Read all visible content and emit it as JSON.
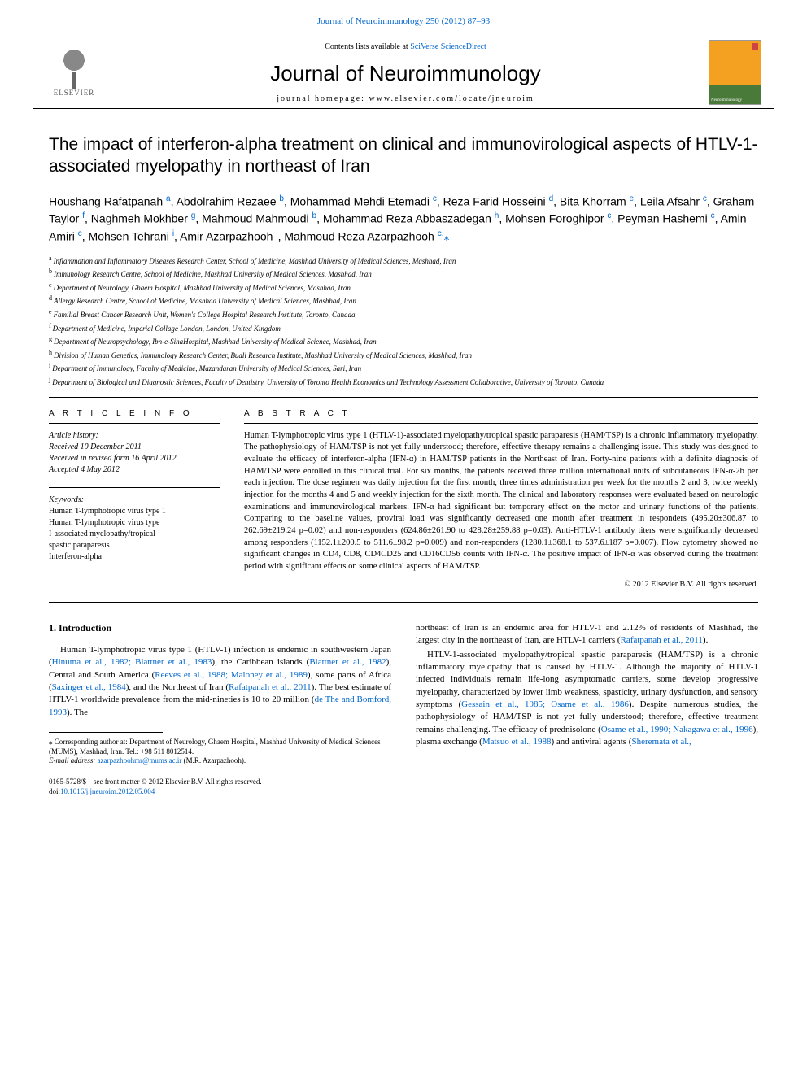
{
  "header": {
    "top_link": "Journal of Neuroimmunology 250 (2012) 87–93",
    "contents_at": "Contents lists available at ",
    "sd_name": "SciVerse ScienceDirect",
    "journal_title": "Journal of Neuroimmunology",
    "homepage_label": "journal homepage: ",
    "homepage_url": "www.elsevier.com/locate/jneuroim",
    "elsevier_label": "ELSEVIER",
    "cover_label": "Neuroimmunology"
  },
  "article": {
    "title": "The impact of interferon-alpha treatment on clinical and immunovirological aspects of HTLV-1-associated myelopathy in northeast of Iran",
    "authors_html": "Houshang Rafatpanah <sup>a</sup>, Abdolrahim Rezaee <sup>b</sup>, Mohammad Mehdi Etemadi <sup>c</sup>, Reza Farid Hosseini <sup>d</sup>, Bita Khorram <sup>e</sup>, Leila Afsahr <sup>c</sup>, Graham Taylor <sup>f</sup>, Naghmeh Mokhber <sup>g</sup>, Mahmoud Mahmoudi <sup>b</sup>, Mohammad Reza Abbaszadegan <sup>h</sup>, Mohsen Foroghipor <sup>c</sup>, Peyman Hashemi <sup>c</sup>, Amin Amiri <sup>c</sup>, Mohsen Tehrani <sup>i</sup>, Amir Azarpazhooh <sup>j</sup>, Mahmoud Reza Azarpazhooh <sup>c,</sup><span class=\"corr-star\">⁎</span>",
    "affiliations": [
      {
        "sup": "a",
        "text": "Inflammation and Inflammatory Diseases Research Center, School of Medicine, Mashhad University of Medical Sciences, Mashhad, Iran"
      },
      {
        "sup": "b",
        "text": "Immunology Research Centre, School of Medicine, Mashhad University of Medical Sciences, Mashhad, Iran"
      },
      {
        "sup": "c",
        "text": "Department of Neurology, Ghaem Hospital, Mashhad University of Medical Sciences, Mashhad, Iran"
      },
      {
        "sup": "d",
        "text": "Allergy Research Centre, School of Medicine, Mashhad University of Medical Sciences, Mashhad, Iran"
      },
      {
        "sup": "e",
        "text": "Familial Breast Cancer Research Unit, Women's College Hospital Research Institute, Toronto, Canada"
      },
      {
        "sup": "f",
        "text": "Department of Medicine, Imperial Collage London, London, United Kingdom"
      },
      {
        "sup": "g",
        "text": "Department of Neuropsychology, Ibn-e-SinaHospital, Mashhad University of Medical Science, Mashhad, Iran"
      },
      {
        "sup": "h",
        "text": "Division of Human Genetics, Immunology Research Center, Buali Research Institute, Mashhad University of Medical Sciences, Mashhad, Iran"
      },
      {
        "sup": "i",
        "text": "Department of Immunology, Faculty of Medicine, Mazandaran University of Medical Sciences, Sari, Iran"
      },
      {
        "sup": "j",
        "text": "Department of Biological and Diagnostic Sciences, Faculty of Dentistry, University of Toronto Health Economics and Technology Assessment Collaborative, University of Toronto, Canada"
      }
    ]
  },
  "info": {
    "info_label": "A R T I C L E   I N F O",
    "history_label": "Article history:",
    "received": "Received 10 December 2011",
    "revised": "Received in revised form 16 April 2012",
    "accepted": "Accepted 4 May 2012",
    "keywords_label": "Keywords:",
    "keywords": [
      "Human T-lymphotropic virus type 1",
      "Human T-lymphotropic virus type",
      "I-associated myelopathy/tropical",
      "spastic paraparesis",
      "Interferon-alpha"
    ]
  },
  "abstract": {
    "label": "A B S T R A C T",
    "text": "Human T-lymphotropic virus type 1 (HTLV-1)-associated myelopathy/tropical spastic paraparesis (HAM/TSP) is a chronic inflammatory myelopathy. The pathophysiology of HAM/TSP is not yet fully understood; therefore, effective therapy remains a challenging issue. This study was designed to evaluate the efficacy of interferon-alpha (IFN-α) in HAM/TSP patients in the Northeast of Iran. Forty-nine patients with a definite diagnosis of HAM/TSP were enrolled in this clinical trial. For six months, the patients received three million international units of subcutaneous IFN-α-2b per each injection. The dose regimen was daily injection for the first month, three times administration per week for the months 2 and 3, twice weekly injection for the months 4 and 5 and weekly injection for the sixth month. The clinical and laboratory responses were evaluated based on neurologic examinations and immunovirological markers. IFN-α had significant but temporary effect on the motor and urinary functions of the patients. Comparing to the baseline values, proviral load was significantly decreased one month after treatment in responders (495.20±306.87 to 262.69±219.24 p=0.02) and non-responders (624.86±261.90 to 428.28±259.88 p=0.03). Anti-HTLV-1 antibody titers were significantly decreased among responders (1152.1±200.5 to 511.6±98.2 p=0.009) and non-responders (1280.1±368.1 to 537.6±187 p=0.007). Flow cytometry showed no significant changes in CD4, CD8, CD4CD25 and CD16CD56 counts with IFN-α. The positive impact of IFN-α was observed during the treatment period with significant effects on some clinical aspects of HAM/TSP.",
    "copyright": "© 2012 Elsevier B.V. All rights reserved."
  },
  "intro": {
    "heading": "1. Introduction",
    "col1_p1_pre": "Human T-lymphotropic virus type 1 (HTLV-1) infection is endemic in southwestern Japan (",
    "ref1": "Hinuma et al., 1982; Blattner et al., 1983",
    "col1_p1_mid1": "), the Caribbean islands (",
    "ref2": "Blattner et al., 1982",
    "col1_p1_mid2": "), Central and South America (",
    "ref3": "Reeves et al., 1988; Maloney et al., 1989",
    "col1_p1_mid3": "), some parts of Africa (",
    "ref4": "Saxinger et al., 1984",
    "col1_p1_mid4": "), and the Northeast of Iran (",
    "ref5": "Rafatpanah et al., 2011",
    "col1_p1_mid5": "). The best estimate of HTLV-1 worldwide prevalence from the mid-nineties is 10 to 20 million (",
    "ref6": "de The and Bomford, 1993",
    "col1_p1_end": "). The",
    "col2_p1_pre": "northeast of Iran is an endemic area for HTLV-1 and 2.12% of residents of Mashhad, the largest city in the northeast of Iran, are HTLV-1 carriers (",
    "ref7": "Rafatpanah et al., 2011",
    "col2_p1_end": ").",
    "col2_p2_pre": "HTLV-1-associated myelopathy/tropical spastic paraparesis (HAM/TSP) is a chronic inflammatory myelopathy that is caused by HTLV-1. Although the majority of HTLV-1 infected individuals remain life-long asymptomatic carriers, some develop progressive myelopathy, characterized by lower limb weakness, spasticity, urinary dysfunction, and sensory symptoms (",
    "ref8": "Gessain et al., 1985; Osame et al., 1986",
    "col2_p2_mid1": "). Despite numerous studies, the pathophysiology of HAM/TSP is not yet fully understood; therefore, effective treatment remains challenging. The efficacy of prednisolone (",
    "ref9": "Osame et al., 1990; Nakagawa et al., 1996",
    "col2_p2_mid2": "), plasma exchange (",
    "ref10": "Matsuo et al., 1988",
    "col2_p2_mid3": ") and antiviral agents (",
    "ref11": "Sheremata et al.,"
  },
  "footer": {
    "corr_star": "⁎",
    "corr_text": " Corresponding author at: Department of Neurology, Ghaem Hospital, Mashhad University of Medical Sciences (MUMS), Mashhad, Iran. Tel.: +98 511 8012514.",
    "email_label": "E-mail address: ",
    "email": "azarpazhoohmr@mums.ac.ir",
    "email_suffix": " (M.R. Azarpazhooh).",
    "issn": "0165-5728/$ – see front matter © 2012 Elsevier B.V. All rights reserved.",
    "doi_label": "doi:",
    "doi": "10.1016/j.jneuroim.2012.05.004"
  },
  "colors": {
    "link": "#0066cc",
    "text": "#000000",
    "cover_top": "#f4a020",
    "cover_bottom": "#4a7a3a"
  }
}
